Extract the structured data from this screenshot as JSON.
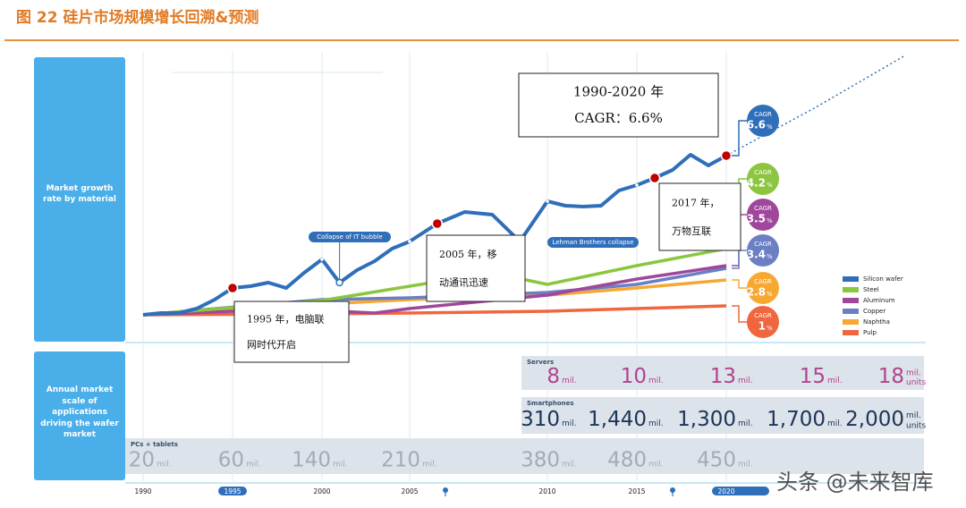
{
  "title": "图 22  硅片市场规模增长回溯&预测",
  "watermark": "头条 @未来智库",
  "panels": {
    "growth": "Market growth rate by material",
    "applications": "Annual market scale of applications driving the wafer market"
  },
  "chart_data": {
    "type": "line",
    "ylim": [
      100,
      400
    ],
    "xticks": [
      1990,
      1995,
      2000,
      2005,
      2010,
      2015,
      2020
    ],
    "cagr_label": "CAGR",
    "cagr_unit": "%",
    "series": [
      {
        "name": "Silicon wafer",
        "color": "#2f6fba",
        "cagr": 6.6,
        "x": [
          1990,
          1991,
          1992,
          1993,
          1994,
          1995,
          1996,
          1997,
          1998,
          1999,
          2000,
          2001,
          2002,
          2003,
          2004,
          2005,
          2006,
          2007,
          2008,
          2009,
          2010,
          2011,
          2012,
          2013,
          2014,
          2015,
          2016,
          2017,
          2018,
          2019,
          2020
        ],
        "values": [
          100,
          102,
          102,
          107,
          117,
          130,
          132,
          136,
          130,
          147,
          162,
          136,
          150,
          160,
          174,
          182,
          202,
          215,
          212,
          182,
          227,
          222,
          221,
          222,
          239,
          245,
          253,
          262,
          279,
          267,
          278
        ],
        "forecast": {
          "x": [
            2020,
            2025,
            2030
          ],
          "values": [
            278,
            332,
            390
          ]
        }
      },
      {
        "name": "Steel",
        "color": "#8cc63f",
        "cagr": 4.2,
        "x": [
          1990,
          1995,
          2000,
          2005,
          2008,
          2010,
          2015,
          2020
        ],
        "values": [
          100,
          108,
          116,
          132,
          147,
          134,
          155,
          174
        ]
      },
      {
        "name": "Aluminum",
        "color": "#a0479c",
        "cagr": 3.5,
        "x": [
          1990,
          1995,
          2000,
          2003,
          2005,
          2010,
          2015,
          2020
        ],
        "values": [
          100,
          104,
          105,
          102,
          107,
          122,
          140,
          155
        ]
      },
      {
        "name": "Copper",
        "color": "#6a7fc4",
        "cagr": 3.4,
        "x": [
          1990,
          2000,
          2005,
          2010,
          2015,
          2020
        ],
        "values": [
          100,
          117,
          119,
          125,
          134,
          152
        ]
      },
      {
        "name": "Naphtha",
        "color": "#f7a833",
        "cagr": 2.8,
        "x": [
          1990,
          2000,
          2005,
          2010,
          2015,
          2020
        ],
        "values": [
          100,
          112,
          117,
          122,
          130,
          139
        ]
      },
      {
        "name": "Pulp",
        "color": "#f0663f",
        "cagr": 1.0,
        "x": [
          1990,
          2000,
          2005,
          2010,
          2015,
          2020
        ],
        "values": [
          100,
          101,
          102,
          104,
          107,
          110
        ]
      }
    ],
    "events": [
      {
        "label": "Collapse of IT bubble"
      },
      {
        "label": "Lehman Brothers collapse"
      }
    ],
    "annotations": [
      {
        "lines": [
          "1990-2020 年",
          "CAGR：6.6%"
        ]
      },
      {
        "lines": [
          "2017 年，",
          "万物互联"
        ]
      },
      {
        "lines": [
          "2005 年，移",
          "动通讯迅速"
        ]
      },
      {
        "lines": [
          "1995 年，电脑联",
          "网时代开启"
        ]
      }
    ]
  },
  "markets": [
    {
      "name": "Servers",
      "unit": "mil.",
      "last_extra": "units",
      "values": [
        8,
        10,
        13,
        15,
        18
      ]
    },
    {
      "name": "Smartphones",
      "unit": "mil.",
      "last_extra": "units",
      "values": [
        310,
        {
          "value": 1440,
          "label": "1,440"
        },
        {
          "value": 1300,
          "label": "1,300"
        },
        {
          "value": 1700,
          "label": "1,700"
        },
        {
          "value": 2000,
          "label": "2,000"
        }
      ]
    },
    {
      "name": "PCs + tablets",
      "unit": "mil.",
      "values": [
        20,
        60,
        140,
        210,
        380,
        480,
        450
      ]
    }
  ]
}
